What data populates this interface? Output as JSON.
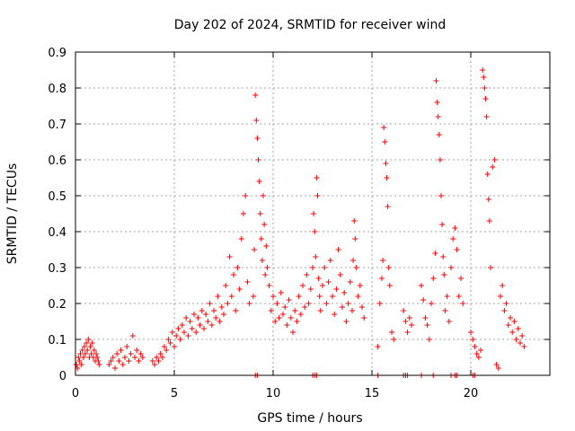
{
  "chart_data": {
    "type": "scatter",
    "title": "Day 202 of 2024, SRMTID for receiver wind",
    "xlabel": "GPS time / hours",
    "ylabel": "SRMTID / TECUs",
    "xlim": [
      0,
      24
    ],
    "ylim": [
      0,
      0.9
    ],
    "xticks": [
      "0",
      "5",
      "10",
      "15",
      "20"
    ],
    "xtick_values": [
      0,
      5,
      10,
      15,
      20
    ],
    "yticks": [
      "0",
      "0.1",
      "0.2",
      "0.3",
      "0.4",
      "0.5",
      "0.6",
      "0.7",
      "0.8",
      "0.9"
    ],
    "ytick_values": [
      0,
      0.1,
      0.2,
      0.3,
      0.4,
      0.5,
      0.6,
      0.7,
      0.8,
      0.9
    ],
    "grid": true,
    "marker": "+",
    "color": "#ff0000",
    "series": [
      {
        "name": "SRMTID",
        "x": [
          0.05,
          0.1,
          0.15,
          0.2,
          0.25,
          0.3,
          0.35,
          0.4,
          0.45,
          0.5,
          0.55,
          0.6,
          0.65,
          0.7,
          0.75,
          0.8,
          0.85,
          0.9,
          0.95,
          1.0,
          1.05,
          1.1,
          1.15,
          1.2,
          1.7,
          1.8,
          1.9,
          2.0,
          2.1,
          2.2,
          2.3,
          2.4,
          2.5,
          2.6,
          2.7,
          2.8,
          2.9,
          3.0,
          3.1,
          3.2,
          3.3,
          3.4,
          3.9,
          4.0,
          4.1,
          4.2,
          4.3,
          4.4,
          4.5,
          4.6,
          4.7,
          4.8,
          4.9,
          5.0,
          5.1,
          5.2,
          5.3,
          5.4,
          5.5,
          5.6,
          5.7,
          5.8,
          5.9,
          6.0,
          6.1,
          6.2,
          6.3,
          6.4,
          6.5,
          6.6,
          6.7,
          6.8,
          6.9,
          7.0,
          7.1,
          7.2,
          7.3,
          7.4,
          7.5,
          7.6,
          7.7,
          7.8,
          7.9,
          8.0,
          8.1,
          8.2,
          8.3,
          8.4,
          8.5,
          8.6,
          8.7,
          8.8,
          9.0,
          9.05,
          9.1,
          9.15,
          9.2,
          9.25,
          9.3,
          9.35,
          9.4,
          9.45,
          9.5,
          9.55,
          9.6,
          9.65,
          9.7,
          9.8,
          9.9,
          10.0,
          10.1,
          10.2,
          10.3,
          10.4,
          10.5,
          10.6,
          10.7,
          10.8,
          10.9,
          11.0,
          11.1,
          11.2,
          11.3,
          11.4,
          11.5,
          11.6,
          11.7,
          11.8,
          11.9,
          12.0,
          12.05,
          12.1,
          12.15,
          12.2,
          12.25,
          12.3,
          12.35,
          12.4,
          12.5,
          12.6,
          12.7,
          12.8,
          12.9,
          13.0,
          13.1,
          13.2,
          13.3,
          13.4,
          13.5,
          13.6,
          13.7,
          13.8,
          13.9,
          14.0,
          14.05,
          14.1,
          14.15,
          14.2,
          14.3,
          14.4,
          14.5,
          14.6,
          15.3,
          15.4,
          15.5,
          15.55,
          15.6,
          15.65,
          15.7,
          15.75,
          15.8,
          15.85,
          15.9,
          16.0,
          16.1,
          16.6,
          16.7,
          16.8,
          16.9,
          17.0,
          17.5,
          17.6,
          17.7,
          17.8,
          17.9,
          18.0,
          18.1,
          18.2,
          18.25,
          18.3,
          18.35,
          18.4,
          18.45,
          18.5,
          18.55,
          18.6,
          18.65,
          18.7,
          18.8,
          18.9,
          19.0,
          19.1,
          19.2,
          19.3,
          19.4,
          19.5,
          19.6,
          20.0,
          20.1,
          20.2,
          20.3,
          20.4,
          20.5,
          20.6,
          20.65,
          20.7,
          20.75,
          20.8,
          20.85,
          20.9,
          20.95,
          21.0,
          21.1,
          21.2,
          21.3,
          21.4,
          21.5,
          21.6,
          21.7,
          21.8,
          21.9,
          22.0,
          22.1,
          22.2,
          22.3,
          22.4,
          22.5,
          22.6,
          22.7
        ],
        "y": [
          0.03,
          0.02,
          0.05,
          0.04,
          0.06,
          0.03,
          0.07,
          0.05,
          0.08,
          0.06,
          0.09,
          0.07,
          0.1,
          0.05,
          0.08,
          0.06,
          0.09,
          0.05,
          0.07,
          0.04,
          0.06,
          0.05,
          0.04,
          0.03,
          0.03,
          0.04,
          0.05,
          0.02,
          0.06,
          0.04,
          0.07,
          0.03,
          0.05,
          0.08,
          0.04,
          0.06,
          0.11,
          0.05,
          0.07,
          0.04,
          0.06,
          0.05,
          0.04,
          0.03,
          0.05,
          0.04,
          0.06,
          0.05,
          0.08,
          0.07,
          0.1,
          0.09,
          0.12,
          0.08,
          0.11,
          0.13,
          0.1,
          0.14,
          0.12,
          0.16,
          0.11,
          0.15,
          0.13,
          0.17,
          0.12,
          0.16,
          0.14,
          0.18,
          0.13,
          0.17,
          0.15,
          0.2,
          0.14,
          0.18,
          0.16,
          0.22,
          0.15,
          0.19,
          0.17,
          0.25,
          0.2,
          0.33,
          0.22,
          0.28,
          0.18,
          0.3,
          0.24,
          0.38,
          0.45,
          0.5,
          0.26,
          0.2,
          0.22,
          0.35,
          0.78,
          0.71,
          0.66,
          0.6,
          0.54,
          0.45,
          0.38,
          0.32,
          0.5,
          0.42,
          0.28,
          0.36,
          0.3,
          0.25,
          0.18,
          0.22,
          0.15,
          0.2,
          0.16,
          0.23,
          0.17,
          0.19,
          0.14,
          0.21,
          0.16,
          0.12,
          0.18,
          0.15,
          0.22,
          0.17,
          0.25,
          0.19,
          0.28,
          0.2,
          0.24,
          0.3,
          0.45,
          0.4,
          0.33,
          0.55,
          0.5,
          0.27,
          0.22,
          0.18,
          0.25,
          0.3,
          0.2,
          0.26,
          0.32,
          0.22,
          0.17,
          0.24,
          0.35,
          0.28,
          0.19,
          0.23,
          0.15,
          0.2,
          0.26,
          0.18,
          0.32,
          0.43,
          0.38,
          0.3,
          0.22,
          0.25,
          0.19,
          0.16,
          0.08,
          0.2,
          0.27,
          0.32,
          0.69,
          0.65,
          0.59,
          0.55,
          0.47,
          0.3,
          0.25,
          0.12,
          0.1,
          0.18,
          0.15,
          0.12,
          0.16,
          0.14,
          0.25,
          0.21,
          0.16,
          0.14,
          0.1,
          0.2,
          0.27,
          0.34,
          0.82,
          0.76,
          0.72,
          0.67,
          0.6,
          0.5,
          0.42,
          0.33,
          0.28,
          0.18,
          0.22,
          0.15,
          0.3,
          0.38,
          0.41,
          0.35,
          0.22,
          0.27,
          0.2,
          0.12,
          0.1,
          0.08,
          0.06,
          0.05,
          0.07,
          0.85,
          0.83,
          0.8,
          0.77,
          0.72,
          0.56,
          0.49,
          0.43,
          0.3,
          0.58,
          0.6,
          0.03,
          0.02,
          0.22,
          0.25,
          0.18,
          0.2,
          0.14,
          0.16,
          0.12,
          0.15,
          0.1,
          0.13,
          0.09,
          0.11,
          0.08
        ],
        "zero_x": [
          9.1,
          9.2,
          12.0,
          12.1,
          12.2,
          15.3,
          16.6,
          16.7,
          16.8,
          17.5,
          18.1,
          19.0,
          19.2,
          19.3,
          20.1,
          20.2
        ]
      }
    ]
  }
}
